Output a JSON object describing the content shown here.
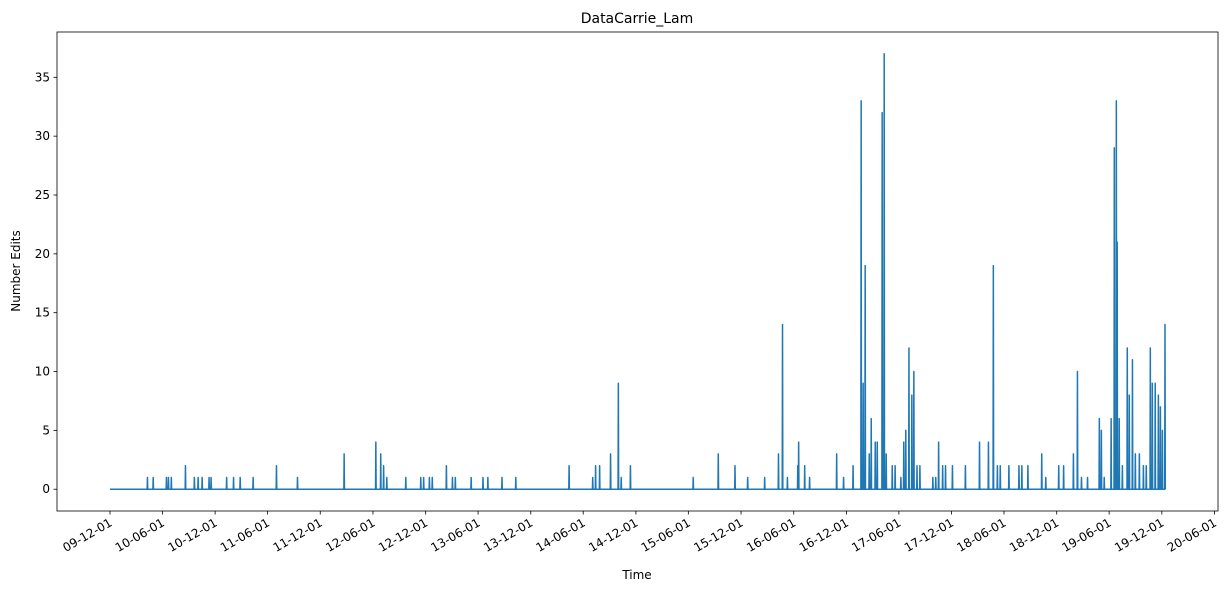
{
  "chart_data": {
    "type": "line",
    "title": "DataCarrie_Lam",
    "x_label": "Time",
    "y_label": "Number Edits",
    "color": "#1f77b4",
    "xlim": [
      "09-05-31",
      "20-06-13"
    ],
    "xticks": [
      "09-12-01",
      "10-06-01",
      "10-12-01",
      "11-06-01",
      "11-12-01",
      "12-06-01",
      "12-12-01",
      "13-06-01",
      "13-12-01",
      "14-06-01",
      "14-12-01",
      "15-06-01",
      "15-12-01",
      "16-06-01",
      "16-12-01",
      "17-06-01",
      "17-12-01",
      "18-06-01",
      "18-12-01",
      "19-06-01",
      "19-12-01",
      "20-06-01"
    ],
    "ylim": [
      -1.85,
      38.85
    ],
    "yticks": [
      0,
      5,
      10,
      15,
      20,
      25,
      30,
      35
    ],
    "x": [
      "09-12-01",
      "10-04-09",
      "10-04-10",
      "10-04-11",
      "10-04-29",
      "10-04-30",
      "10-05-01",
      "10-06-14",
      "10-06-15",
      "10-06-16",
      "10-06-21",
      "10-06-22",
      "10-06-23",
      "10-07-01",
      "10-07-02",
      "10-07-03",
      "10-08-19",
      "10-08-20",
      "10-08-21",
      "10-09-19",
      "10-09-20",
      "10-09-21",
      "10-10-02",
      "10-10-03",
      "10-10-04",
      "10-10-16",
      "10-10-17",
      "10-10-18",
      "10-11-09",
      "10-11-10",
      "10-11-11",
      "10-11-16",
      "10-11-17",
      "10-11-18",
      "11-01-09",
      "11-01-10",
      "11-01-11",
      "11-02-02",
      "11-02-03",
      "11-02-04",
      "11-02-25",
      "11-02-26",
      "11-02-27",
      "11-04-11",
      "11-04-12",
      "11-04-13",
      "11-07-01",
      "11-07-02",
      "11-07-03",
      "11-09-12",
      "11-09-13",
      "11-09-14",
      "12-02-21",
      "12-02-22",
      "12-02-23",
      "12-06-10",
      "12-06-11",
      "12-06-12",
      "12-06-27",
      "12-06-28",
      "12-06-29",
      "12-07-07",
      "12-07-08",
      "12-07-09",
      "12-07-18",
      "12-07-19",
      "12-07-20",
      "12-09-22",
      "12-09-23",
      "12-09-24",
      "12-11-13",
      "12-11-14",
      "12-11-15",
      "12-11-23",
      "12-11-24",
      "12-11-25",
      "12-12-13",
      "12-12-14",
      "12-12-15",
      "12-12-23",
      "12-12-24",
      "12-12-25",
      "13-02-10",
      "13-02-11",
      "13-02-12",
      "13-03-03",
      "13-03-04",
      "13-03-05",
      "13-03-13",
      "13-03-14",
      "13-03-15",
      "13-05-07",
      "13-05-08",
      "13-05-09",
      "13-06-17",
      "13-06-18",
      "13-06-19",
      "13-07-04",
      "13-07-05",
      "13-07-06",
      "13-08-22",
      "13-08-23",
      "13-08-24",
      "13-10-09",
      "13-10-10",
      "13-10-11",
      "14-04-12",
      "14-04-13",
      "14-04-14",
      "14-07-03",
      "14-07-04",
      "14-07-05",
      "14-07-13",
      "14-07-14",
      "14-07-15",
      "14-07-27",
      "14-07-28",
      "14-07-29",
      "14-09-03",
      "14-09-04",
      "14-09-05",
      "14-09-30",
      "14-10-01",
      "14-10-02",
      "14-10-10",
      "14-10-11",
      "14-10-12",
      "14-11-11",
      "14-11-12",
      "14-11-13",
      "15-06-17",
      "15-06-18",
      "15-06-19",
      "15-09-12",
      "15-09-13",
      "15-09-14",
      "15-11-09",
      "15-11-10",
      "15-11-11",
      "15-12-23",
      "15-12-24",
      "15-12-25",
      "16-02-20",
      "16-02-21",
      "16-02-22",
      "16-04-08",
      "16-04-09",
      "16-04-10",
      "16-04-22",
      "16-04-23",
      "16-04-24",
      "16-05-09",
      "16-05-10",
      "16-05-11",
      "16-06-14",
      "16-06-15",
      "16-06-16",
      "16-06-17",
      "16-06-18",
      "16-06-19",
      "16-07-08",
      "16-07-09",
      "16-07-10",
      "16-07-25",
      "16-07-26",
      "16-07-27",
      "16-10-27",
      "16-10-28",
      "16-10-29",
      "16-11-20",
      "16-11-21",
      "16-11-22",
      "16-12-23",
      "16-12-24",
      "16-12-25",
      "17-01-20",
      "17-01-21",
      "17-01-22",
      "17-01-27",
      "17-01-28",
      "17-01-29",
      "17-02-03",
      "17-02-04",
      "17-02-05",
      "17-02-17",
      "17-02-18",
      "17-02-19",
      "17-02-24",
      "17-02-25",
      "17-02-26",
      "17-03-10",
      "17-03-11",
      "17-03-12",
      "17-03-17",
      "17-03-18",
      "17-03-19",
      "17-04-03",
      "17-04-04",
      "17-04-05",
      "17-04-10",
      "17-04-11",
      "17-04-12",
      "17-04-17",
      "17-04-18",
      "17-04-19",
      "17-05-08",
      "17-05-09",
      "17-05-10",
      "17-05-18",
      "17-05-19",
      "17-05-20",
      "17-06-07",
      "17-06-08",
      "17-06-09",
      "17-06-17",
      "17-06-18",
      "17-06-19",
      "17-06-24",
      "17-06-25",
      "17-06-26",
      "17-07-05",
      "17-07-06",
      "17-07-07",
      "17-07-15",
      "17-07-16",
      "17-07-17",
      "17-07-22",
      "17-07-23",
      "17-07-24",
      "17-08-02",
      "17-08-03",
      "17-08-04",
      "17-08-12",
      "17-08-13",
      "17-08-14",
      "17-09-26",
      "17-09-27",
      "17-09-28",
      "17-10-06",
      "17-10-07",
      "17-10-08",
      "17-10-16",
      "17-10-17",
      "17-10-18",
      "17-10-30",
      "17-10-31",
      "17-11-01",
      "17-11-09",
      "17-11-10",
      "17-11-11",
      "17-12-03",
      "17-12-04",
      "17-12-05",
      "18-01-17",
      "18-01-18",
      "18-01-19",
      "18-03-07",
      "18-03-08",
      "18-03-09",
      "18-04-07",
      "18-04-08",
      "18-04-09",
      "18-04-24",
      "18-04-25",
      "18-04-26",
      "18-05-08",
      "18-05-09",
      "18-05-10",
      "18-05-18",
      "18-05-19",
      "18-05-20",
      "18-06-17",
      "18-06-18",
      "18-06-19",
      "18-07-22",
      "18-07-23",
      "18-07-24",
      "18-08-01",
      "18-08-02",
      "18-08-03",
      "18-08-22",
      "18-08-23",
      "18-08-24",
      "18-10-09",
      "18-10-10",
      "18-10-11",
      "18-10-23",
      "18-10-24",
      "18-10-25",
      "18-12-07",
      "18-12-08",
      "18-12-09",
      "18-12-24",
      "18-12-25",
      "18-12-26",
      "19-01-27",
      "19-01-28",
      "19-01-29",
      "19-02-10",
      "19-02-11",
      "19-02-12",
      "19-02-24",
      "19-02-25",
      "19-02-26",
      "19-03-17",
      "19-03-18",
      "19-03-19",
      "19-04-27",
      "19-04-28",
      "19-04-29",
      "19-05-04",
      "19-05-05",
      "19-05-06",
      "19-05-14",
      "19-05-15",
      "19-05-16",
      "19-06-07",
      "19-06-08",
      "19-06-09",
      "19-06-18",
      "19-06-19",
      "19-06-20",
      "19-06-25",
      "19-06-26",
      "19-06-27",
      "19-06-28",
      "19-06-29",
      "19-06-30",
      "19-07-05",
      "19-07-06",
      "19-07-07",
      "19-07-16",
      "19-07-17",
      "19-07-18",
      "19-08-02",
      "19-08-03",
      "19-08-04",
      "19-08-09",
      "19-08-10",
      "19-08-11",
      "19-08-20",
      "19-08-21",
      "19-08-22",
      "19-08-30",
      "19-08-31",
      "19-09-01",
      "19-09-13",
      "19-09-14",
      "19-09-15",
      "19-09-27",
      "19-09-28",
      "19-09-29",
      "19-10-07",
      "19-10-08",
      "19-10-09",
      "19-10-21",
      "19-10-22",
      "19-10-23",
      "19-10-28",
      "19-10-29",
      "19-10-30",
      "19-11-07",
      "19-11-08",
      "19-11-09",
      "19-11-18",
      "19-11-19",
      "19-11-20",
      "19-11-25",
      "19-11-26",
      "19-11-27",
      "19-12-02",
      "19-12-03",
      "19-12-04",
      "19-12-11",
      "19-12-12",
      "19-12-13"
    ],
    "values": [
      0,
      0,
      1,
      0,
      0,
      1,
      0,
      0,
      1,
      0,
      0,
      1,
      0,
      0,
      1,
      0,
      0,
      2,
      0,
      0,
      1,
      0,
      0,
      1,
      0,
      0,
      1,
      0,
      0,
      1,
      0,
      0,
      1,
      0,
      0,
      1,
      0,
      0,
      1,
      0,
      0,
      1,
      0,
      0,
      1,
      0,
      0,
      2,
      0,
      0,
      1,
      0,
      0,
      3,
      0,
      0,
      4,
      0,
      0,
      3,
      0,
      0,
      2,
      0,
      0,
      1,
      0,
      0,
      1,
      0,
      0,
      1,
      0,
      0,
      1,
      0,
      0,
      1,
      0,
      0,
      1,
      0,
      0,
      2,
      0,
      0,
      1,
      0,
      0,
      1,
      0,
      0,
      1,
      0,
      0,
      1,
      0,
      0,
      1,
      0,
      0,
      1,
      0,
      0,
      1,
      0,
      0,
      2,
      0,
      0,
      1,
      0,
      0,
      2,
      0,
      0,
      2,
      0,
      0,
      3,
      0,
      0,
      9,
      0,
      0,
      1,
      0,
      0,
      2,
      0,
      0,
      1,
      0,
      0,
      3,
      0,
      0,
      2,
      0,
      0,
      1,
      0,
      0,
      1,
      0,
      0,
      3,
      0,
      0,
      14,
      0,
      0,
      1,
      0,
      0,
      2,
      0,
      0,
      4,
      0,
      0,
      2,
      0,
      0,
      1,
      0,
      0,
      3,
      0,
      0,
      1,
      0,
      0,
      2,
      0,
      0,
      33,
      0,
      0,
      9,
      0,
      0,
      19,
      0,
      0,
      3,
      0,
      0,
      6,
      0,
      0,
      4,
      0,
      0,
      4,
      0,
      0,
      32,
      0,
      0,
      37,
      0,
      0,
      3,
      0,
      0,
      2,
      0,
      0,
      2,
      0,
      0,
      1,
      0,
      0,
      4,
      0,
      0,
      5,
      0,
      0,
      12,
      0,
      0,
      8,
      0,
      0,
      10,
      0,
      0,
      2,
      0,
      0,
      2,
      0,
      0,
      1,
      0,
      0,
      1,
      0,
      0,
      4,
      0,
      0,
      2,
      0,
      0,
      2,
      0,
      0,
      2,
      0,
      0,
      2,
      0,
      0,
      4,
      0,
      0,
      4,
      0,
      0,
      19,
      0,
      0,
      2,
      0,
      0,
      2,
      0,
      0,
      2,
      0,
      0,
      2,
      0,
      0,
      2,
      0,
      0,
      2,
      0,
      0,
      3,
      0,
      0,
      1,
      0,
      0,
      2,
      0,
      0,
      2,
      0,
      0,
      3,
      0,
      0,
      10,
      0,
      0,
      1,
      0,
      0,
      1,
      0,
      0,
      6,
      0,
      0,
      5,
      0,
      0,
      1,
      0,
      0,
      6,
      0,
      0,
      29,
      0,
      0,
      33,
      0,
      0,
      21,
      0,
      0,
      6,
      0,
      0,
      2,
      0,
      0,
      12,
      0,
      0,
      8,
      0,
      0,
      11,
      0,
      0,
      3,
      0,
      0,
      3,
      0,
      0,
      2,
      0,
      0,
      2,
      0,
      0,
      12,
      0,
      0,
      9,
      0,
      0,
      9,
      0,
      0,
      8,
      0,
      0,
      7,
      0,
      0,
      5,
      0,
      0,
      14,
      0
    ]
  }
}
